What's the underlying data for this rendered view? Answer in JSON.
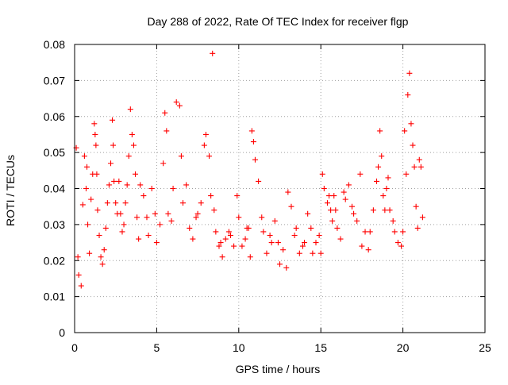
{
  "chart_data": {
    "type": "scatter",
    "title": "Day 288 of 2022, Rate Of TEC Index for receiver flgp",
    "xlabel": "GPS time / hours",
    "ylabel": "ROTI / TECUs",
    "xlim": [
      0,
      25
    ],
    "ylim": [
      0,
      0.08
    ],
    "xticks": [
      0,
      5,
      10,
      15,
      20,
      25
    ],
    "yticks": [
      0,
      0.01,
      0.02,
      0.03,
      0.04,
      0.05,
      0.06,
      0.07,
      0.08
    ],
    "xtick_labels": [
      "0",
      "5",
      "10",
      "15",
      "20",
      "25"
    ],
    "ytick_labels": [
      "0",
      "0.01",
      "0.02",
      "0.03",
      "0.04",
      "0.05",
      "0.06",
      "0.07",
      "0.08"
    ],
    "grid": true,
    "marker": "+",
    "marker_color": "#ff0000",
    "grid_color": "#a0a0a0",
    "series": [
      {
        "x": [
          0.1,
          0.2,
          0.25,
          0.4,
          0.5,
          0.6,
          0.7,
          0.75,
          0.8,
          0.9,
          1.0,
          1.1,
          1.2,
          1.25,
          1.3,
          1.35,
          1.4,
          1.5,
          1.6,
          1.7,
          1.8,
          1.9,
          2.0,
          2.1,
          2.2,
          2.3,
          2.35,
          2.4,
          2.5,
          2.6,
          2.7,
          2.8,
          2.9,
          3.0,
          3.1,
          3.2,
          3.3,
          3.4,
          3.5,
          3.6,
          3.7,
          3.8,
          3.9,
          4.0,
          4.2,
          4.4,
          4.5,
          4.7,
          4.9,
          5.0,
          5.2,
          5.4,
          5.5,
          5.6,
          5.7,
          5.9,
          6.0,
          6.2,
          6.4,
          6.5,
          6.6,
          6.8,
          7.0,
          7.2,
          7.4,
          7.5,
          7.7,
          7.9,
          8.0,
          8.2,
          8.3,
          8.4,
          8.5,
          8.6,
          8.8,
          8.9,
          9.0,
          9.2,
          9.4,
          9.5,
          9.7,
          9.9,
          10.0,
          10.2,
          10.4,
          10.5,
          10.6,
          10.7,
          10.8,
          10.9,
          11.0,
          11.2,
          11.4,
          11.5,
          11.7,
          11.9,
          12.0,
          12.2,
          12.4,
          12.5,
          12.7,
          12.9,
          13.0,
          13.2,
          13.4,
          13.5,
          13.7,
          13.9,
          14.0,
          14.2,
          14.4,
          14.5,
          14.7,
          14.9,
          15.0,
          15.1,
          15.2,
          15.4,
          15.5,
          15.6,
          15.7,
          15.8,
          15.9,
          16.0,
          16.2,
          16.4,
          16.5,
          16.7,
          16.9,
          17.0,
          17.2,
          17.4,
          17.5,
          17.7,
          17.9,
          18.0,
          18.2,
          18.4,
          18.5,
          18.6,
          18.7,
          18.8,
          18.9,
          19.0,
          19.1,
          19.2,
          19.4,
          19.5,
          19.7,
          19.9,
          20.0,
          20.1,
          20.2,
          20.3,
          20.4,
          20.5,
          20.6,
          20.7,
          20.8,
          20.9,
          21.0,
          21.1,
          21.2
        ],
        "y": [
          0.0513,
          0.021,
          0.016,
          0.013,
          0.0355,
          0.049,
          0.04,
          0.046,
          0.03,
          0.022,
          0.037,
          0.044,
          0.058,
          0.055,
          0.052,
          0.044,
          0.034,
          0.027,
          0.021,
          0.019,
          0.023,
          0.029,
          0.036,
          0.041,
          0.047,
          0.059,
          0.052,
          0.042,
          0.036,
          0.033,
          0.042,
          0.033,
          0.028,
          0.03,
          0.036,
          0.041,
          0.049,
          0.062,
          0.055,
          0.052,
          0.044,
          0.032,
          0.026,
          0.041,
          0.038,
          0.032,
          0.027,
          0.04,
          0.033,
          0.025,
          0.03,
          0.047,
          0.061,
          0.056,
          0.033,
          0.031,
          0.04,
          0.064,
          0.063,
          0.049,
          0.036,
          0.041,
          0.029,
          0.026,
          0.032,
          0.033,
          0.036,
          0.052,
          0.055,
          0.049,
          0.038,
          0.0775,
          0.034,
          0.028,
          0.024,
          0.025,
          0.021,
          0.026,
          0.028,
          0.027,
          0.024,
          0.038,
          0.032,
          0.024,
          0.026,
          0.029,
          0.029,
          0.021,
          0.056,
          0.053,
          0.048,
          0.042,
          0.032,
          0.028,
          0.022,
          0.027,
          0.025,
          0.031,
          0.025,
          0.019,
          0.023,
          0.018,
          0.039,
          0.035,
          0.027,
          0.029,
          0.022,
          0.024,
          0.025,
          0.033,
          0.029,
          0.022,
          0.025,
          0.027,
          0.022,
          0.044,
          0.04,
          0.036,
          0.038,
          0.034,
          0.031,
          0.038,
          0.034,
          0.029,
          0.026,
          0.039,
          0.037,
          0.041,
          0.035,
          0.033,
          0.031,
          0.044,
          0.024,
          0.028,
          0.023,
          0.028,
          0.034,
          0.042,
          0.046,
          0.056,
          0.049,
          0.038,
          0.034,
          0.04,
          0.043,
          0.034,
          0.031,
          0.028,
          0.025,
          0.024,
          0.028,
          0.056,
          0.044,
          0.066,
          0.072,
          0.058,
          0.052,
          0.046,
          0.035,
          0.029,
          0.048,
          0.046,
          0.032
        ]
      }
    ]
  }
}
